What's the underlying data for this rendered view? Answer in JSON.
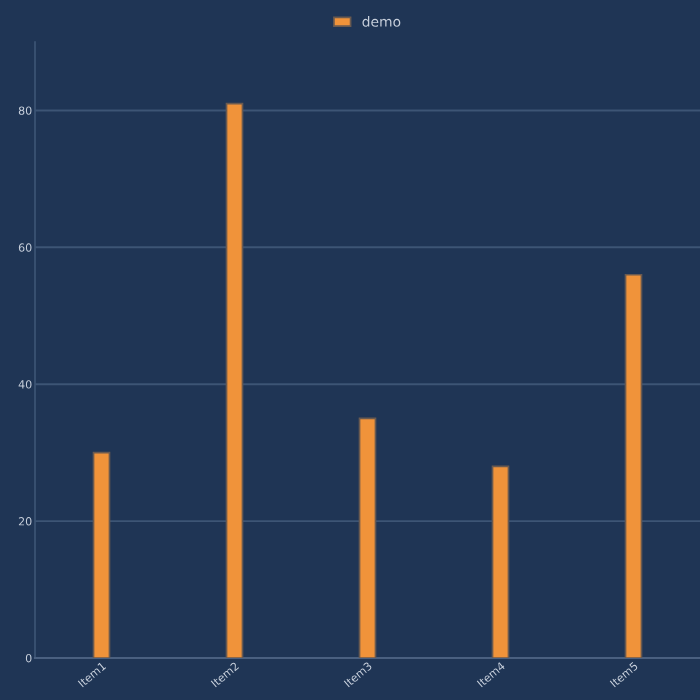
{
  "chart_data": {
    "type": "bar",
    "categories": [
      "Item1",
      "Item2",
      "Item3",
      "Item4",
      "Item5"
    ],
    "series": [
      {
        "name": "demo",
        "color": "#f0933a",
        "values": [
          30,
          81,
          35,
          28,
          56
        ]
      }
    ],
    "ylim": [
      0,
      90
    ],
    "yticks": [
      0,
      20,
      40,
      60,
      80
    ],
    "grid": "y",
    "legend": "top"
  }
}
